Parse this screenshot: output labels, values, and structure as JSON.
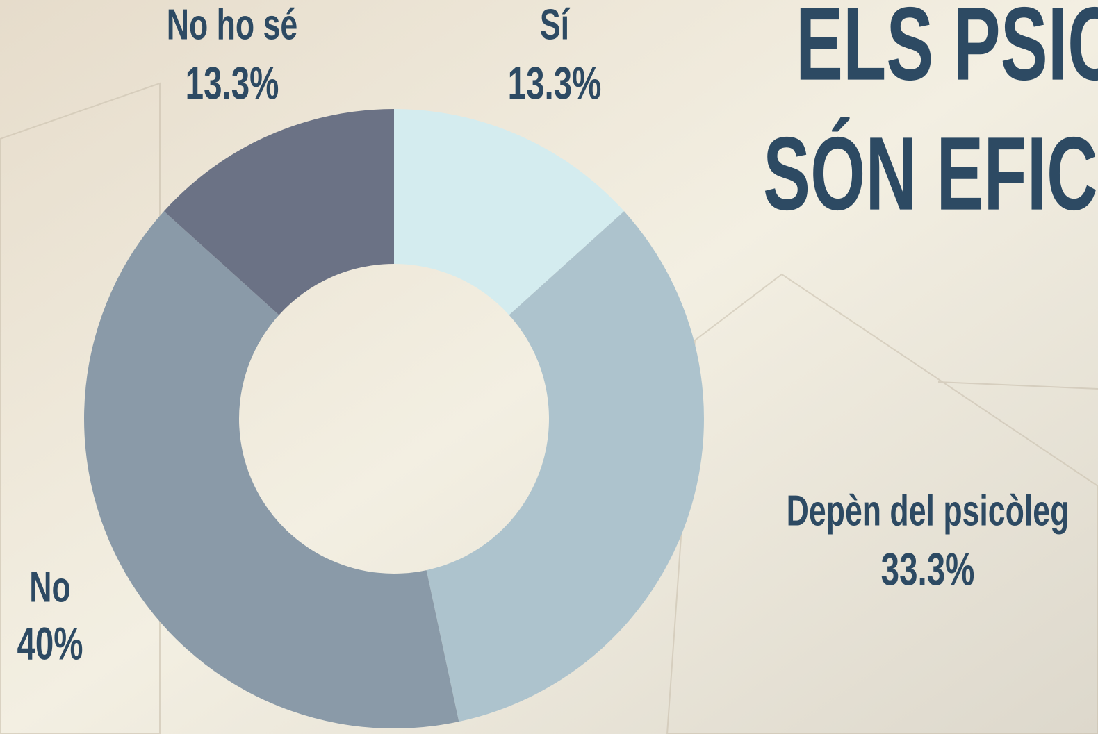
{
  "chart_data": {
    "type": "pie",
    "title_lines": [
      "ELS PSIC",
      "SÓN EFICI"
    ],
    "categories": [
      "Sí",
      "Depèn del psicòleg",
      "No",
      "No ho sé"
    ],
    "values": [
      13.3,
      33.3,
      40,
      13.3
    ],
    "value_labels": [
      "13.3%",
      "33.3%",
      "40%",
      "13.3%"
    ],
    "colors": [
      "#d4ecef",
      "#adc3cd",
      "#8a9aa8",
      "#6b7285"
    ]
  }
}
